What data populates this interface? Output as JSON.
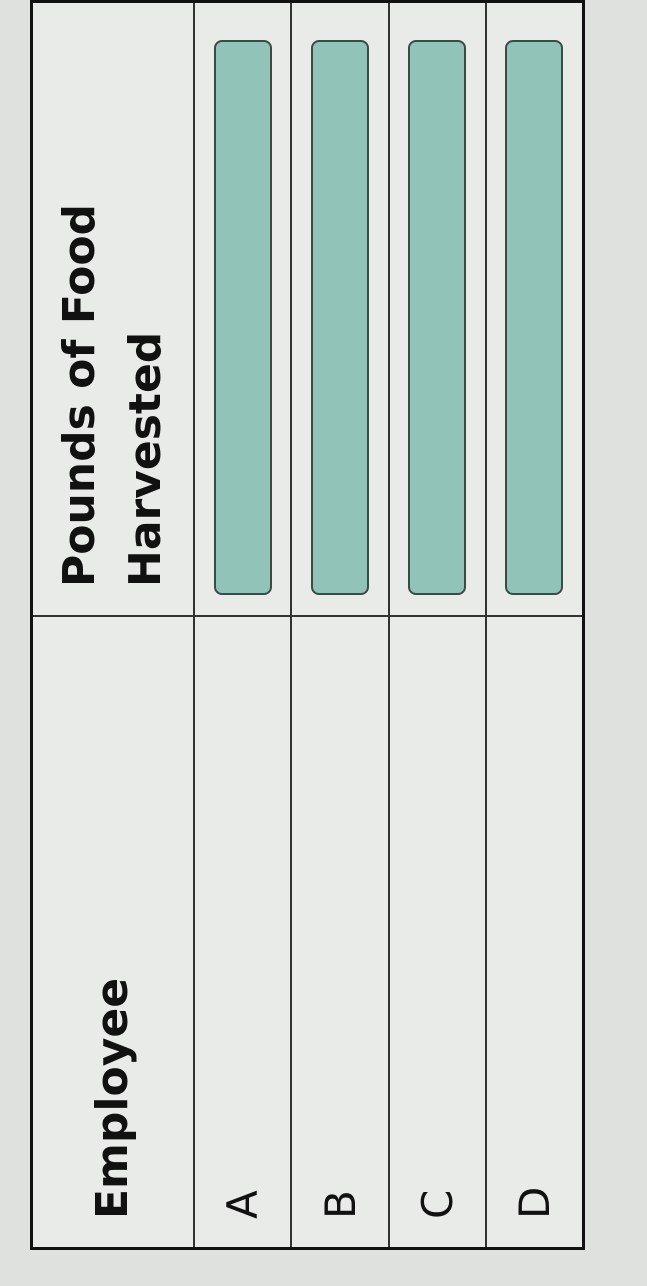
{
  "table": {
    "headers": [
      "Employee",
      "Pounds of Food Harvested"
    ],
    "rows": [
      {
        "employee": "A",
        "pounds": ""
      },
      {
        "employee": "B",
        "pounds": ""
      },
      {
        "employee": "C",
        "pounds": ""
      },
      {
        "employee": "D",
        "pounds": ""
      }
    ]
  },
  "colors": {
    "input_fill": "#92c3b9",
    "background": "#e9ebe9"
  }
}
